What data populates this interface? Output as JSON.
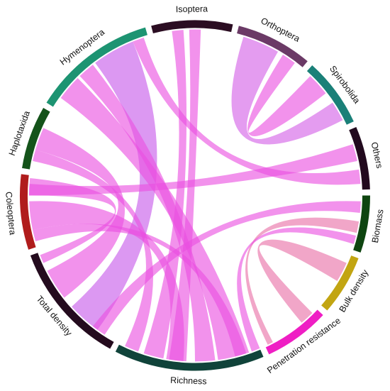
{
  "diagram": {
    "type": "chord",
    "sectors": [
      {
        "id": "isoptera",
        "label": "Isoptera",
        "start": 345.5,
        "end": 12.5,
        "color": "#2b0d22"
      },
      {
        "id": "orthoptera",
        "label": "Orthoptera",
        "start": 14.5,
        "end": 40.0,
        "color": "#6b3a66"
      },
      {
        "id": "spirobolida",
        "label": "Spirobolida",
        "start": 42.0,
        "end": 65.0,
        "color": "#1a8078"
      },
      {
        "id": "others",
        "label": "Others",
        "start": 67.0,
        "end": 88.0,
        "color": "#220a1e"
      },
      {
        "id": "biomass",
        "label": "Biomass",
        "start": 90.0,
        "end": 109.0,
        "color": "#0e4510"
      },
      {
        "id": "bulk-density",
        "label": "Bulk density",
        "start": 111.0,
        "end": 131.0,
        "color": "#c2a512"
      },
      {
        "id": "penetration-resistance",
        "label": "Penetration resistance",
        "start": 133.0,
        "end": 155.0,
        "color": "#ef1ec4"
      },
      {
        "id": "richness",
        "label": "Richness",
        "start": 157.0,
        "end": 207.0,
        "color": "#10433a"
      },
      {
        "id": "total-density",
        "label": "Total density",
        "start": 209.0,
        "end": 250.0,
        "color": "#240b1e"
      },
      {
        "id": "coleoptera",
        "label": "Coleoptera",
        "start": 252.0,
        "end": 277.0,
        "color": "#b01c1c"
      },
      {
        "id": "haplotaxida",
        "label": "Haplotaxida",
        "start": 279.0,
        "end": 300.0,
        "color": "#14531a"
      },
      {
        "id": "hymenoptera",
        "label": "Hymenoptera",
        "start": 302.0,
        "end": 343.5,
        "color": "#1d9472"
      }
    ],
    "links": [
      {
        "a": [
          352,
          356
        ],
        "b": [
          191,
          198
        ],
        "color": "#ea4fe0"
      },
      {
        "a": [
          358,
          362
        ],
        "b": [
          183,
          189
        ],
        "color": "#ea4fe0"
      },
      {
        "a": [
          17,
          30
        ],
        "b": [
          56,
          63
        ],
        "color": "#d45fe6"
      },
      {
        "a": [
          32,
          37
        ],
        "b": [
          44,
          52
        ],
        "color": "#ea4fe0"
      },
      {
        "a": [
          323,
          338
        ],
        "b": [
          216,
          228
        ],
        "color": "#c658ea"
      },
      {
        "a": [
          306,
          315
        ],
        "b": [
          161,
          172
        ],
        "color": "#ea4fe0"
      },
      {
        "a": [
          316,
          322
        ],
        "b": [
          173,
          180
        ],
        "color": "#ea4fe0"
      },
      {
        "a": [
          286,
          294
        ],
        "b": [
          232,
          243
        ],
        "color": "#ea4fe0"
      },
      {
        "a": [
          282,
          286
        ],
        "b": [
          200,
          205
        ],
        "color": "#ea4fe0"
      },
      {
        "a": [
          270,
          276
        ],
        "b": [
          246,
          249
        ],
        "color": "#ea4fe0"
      },
      {
        "a": [
          258,
          268
        ],
        "b": [
          184,
          190
        ],
        "color": "#ea4fe0"
      },
      {
        "a": [
          254,
          258
        ],
        "b": [
          162,
          166
        ],
        "color": "#ea4fe0"
      },
      {
        "a": [
          270,
          274
        ],
        "b": [
          72,
          78
        ],
        "color": "#ea4fe0"
      },
      {
        "a": [
          81,
          86
        ],
        "b": [
          338,
          342
        ],
        "color": "#ea4fe0"
      },
      {
        "a": [
          92,
          96
        ],
        "b": [
          213,
          218
        ],
        "color": "#ea4fe0"
      },
      {
        "a": [
          99,
          103
        ],
        "b": [
          152,
          154
        ],
        "color": "#e86fa6"
      },
      {
        "a": [
          114,
          121
        ],
        "b": [
          135,
          140
        ],
        "color": "#e86fa6"
      },
      {
        "a": [
          104,
          107
        ],
        "b": [
          157,
          160
        ],
        "color": "#ea4fe0"
      }
    ]
  }
}
